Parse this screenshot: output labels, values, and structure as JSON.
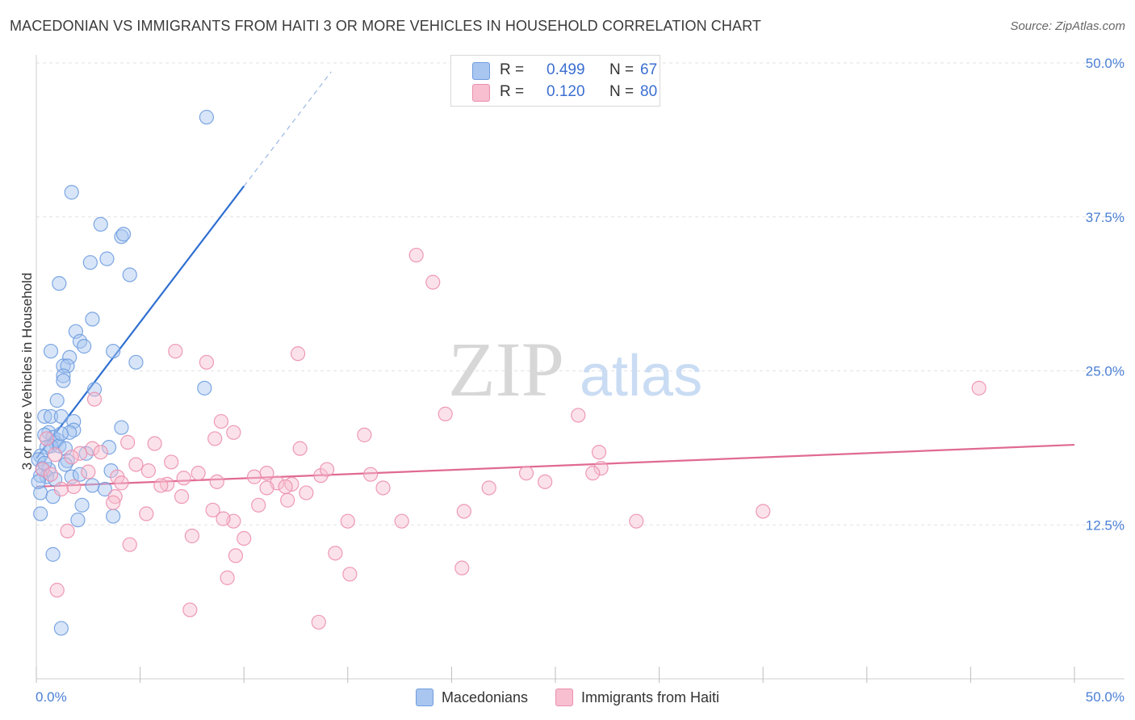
{
  "title": "MACEDONIAN VS IMMIGRANTS FROM HAITI 3 OR MORE VEHICLES IN HOUSEHOLD CORRELATION CHART",
  "source": "Source: ZipAtlas.com",
  "watermark": {
    "zip": "ZIP",
    "atlas": "atlas"
  },
  "stats": [
    {
      "r_label": "R =",
      "r_value": "0.499",
      "n_label": "N =",
      "n_value": "67",
      "color": "#a9c6f0",
      "border": "#6f9de0"
    },
    {
      "r_label": "R =",
      "r_value": "0.120",
      "n_label": "N =",
      "n_value": "80",
      "color": "#f7bfd0",
      "border": "#ec8fae"
    }
  ],
  "legend": [
    {
      "label": "Macedonians",
      "color": "#a9c6f0",
      "border": "#6f9de0"
    },
    {
      "label": "Immigrants from Haiti",
      "color": "#f7bfd0",
      "border": "#ec8fae"
    }
  ],
  "chart_data": {
    "type": "scatter",
    "title": "MACEDONIAN VS IMMIGRANTS FROM HAITI 3 OR MORE VEHICLES IN HOUSEHOLD CORRELATION CHART",
    "xlabel": "",
    "ylabel": "3 or more Vehicles in Household",
    "xlim": [
      0,
      50
    ],
    "ylim": [
      0,
      50
    ],
    "x_tick_labels": [
      "0.0%",
      "50.0%"
    ],
    "y_ticks": [
      12.5,
      25.0,
      37.5,
      50.0
    ],
    "y_tick_labels": [
      "12.5%",
      "25.0%",
      "37.5%",
      "50.0%"
    ],
    "series": [
      {
        "name": "Macedonians",
        "color": "#6f9de0",
        "fill": "#a9c6f0",
        "line_color": "#2f6fd0",
        "trend": {
          "x_start": 0.0,
          "y_start": 17.9,
          "x_end": 10.0,
          "y_end": 40.0,
          "dashed_to_x": 14.2
        },
        "points": [
          [
            8.2,
            45.6
          ],
          [
            1.7,
            39.5
          ],
          [
            3.1,
            36.9
          ],
          [
            4.1,
            35.9
          ],
          [
            4.2,
            36.1
          ],
          [
            2.6,
            33.8
          ],
          [
            3.4,
            34.1
          ],
          [
            1.1,
            32.1
          ],
          [
            4.5,
            32.8
          ],
          [
            2.7,
            29.2
          ],
          [
            1.9,
            28.2
          ],
          [
            2.1,
            27.4
          ],
          [
            0.7,
            26.6
          ],
          [
            1.6,
            26.1
          ],
          [
            2.3,
            27.0
          ],
          [
            3.7,
            26.6
          ],
          [
            1.3,
            25.4
          ],
          [
            1.5,
            25.4
          ],
          [
            1.3,
            24.6
          ],
          [
            1.3,
            24.2
          ],
          [
            4.8,
            25.7
          ],
          [
            8.1,
            23.6
          ],
          [
            2.8,
            23.5
          ],
          [
            1.0,
            22.6
          ],
          [
            0.4,
            21.3
          ],
          [
            0.7,
            21.3
          ],
          [
            1.2,
            21.3
          ],
          [
            1.8,
            20.9
          ],
          [
            4.1,
            20.4
          ],
          [
            0.6,
            20.0
          ],
          [
            0.8,
            19.6
          ],
          [
            1.8,
            20.2
          ],
          [
            1.6,
            20.0
          ],
          [
            0.9,
            19.2
          ],
          [
            1.0,
            19.4
          ],
          [
            0.7,
            18.9
          ],
          [
            1.1,
            18.9
          ],
          [
            0.4,
            19.8
          ],
          [
            0.5,
            18.8
          ],
          [
            1.4,
            18.7
          ],
          [
            3.5,
            18.8
          ],
          [
            0.2,
            18.1
          ],
          [
            0.1,
            17.8
          ],
          [
            1.5,
            17.7
          ],
          [
            0.3,
            17.1
          ],
          [
            0.6,
            17.0
          ],
          [
            1.4,
            17.4
          ],
          [
            3.6,
            16.9
          ],
          [
            0.5,
            16.4
          ],
          [
            0.9,
            16.2
          ],
          [
            1.7,
            16.4
          ],
          [
            2.1,
            16.6
          ],
          [
            0.2,
            16.5
          ],
          [
            2.7,
            15.7
          ],
          [
            3.3,
            15.4
          ],
          [
            0.2,
            15.1
          ],
          [
            0.8,
            14.8
          ],
          [
            2.2,
            14.1
          ],
          [
            0.2,
            13.4
          ],
          [
            3.7,
            13.2
          ],
          [
            2.0,
            12.9
          ],
          [
            0.8,
            10.1
          ],
          [
            1.2,
            4.1
          ],
          [
            0.4,
            17.5
          ],
          [
            1.2,
            19.9
          ],
          [
            2.4,
            18.3
          ],
          [
            0.1,
            16.0
          ]
        ]
      },
      {
        "name": "Immigrants from Haiti",
        "color": "#ec8fae",
        "fill": "#f7bfd0",
        "line_color": "#e06a93",
        "trend": {
          "x_start": 0.0,
          "y_start": 15.6,
          "x_end": 50.0,
          "y_end": 19.0
        },
        "points": [
          [
            18.3,
            34.4
          ],
          [
            19.1,
            32.2
          ],
          [
            45.4,
            23.6
          ],
          [
            6.7,
            26.6
          ],
          [
            8.2,
            25.7
          ],
          [
            12.6,
            26.4
          ],
          [
            2.8,
            22.7
          ],
          [
            19.7,
            21.5
          ],
          [
            26.1,
            21.4
          ],
          [
            8.9,
            20.9
          ],
          [
            9.5,
            20.0
          ],
          [
            15.8,
            19.8
          ],
          [
            8.6,
            19.5
          ],
          [
            4.4,
            19.2
          ],
          [
            5.7,
            19.1
          ],
          [
            2.7,
            18.7
          ],
          [
            12.7,
            18.7
          ],
          [
            27.1,
            18.4
          ],
          [
            3.1,
            18.4
          ],
          [
            2.1,
            18.3
          ],
          [
            0.9,
            18.2
          ],
          [
            1.7,
            18.0
          ],
          [
            6.5,
            17.6
          ],
          [
            4.8,
            17.4
          ],
          [
            27.2,
            17.1
          ],
          [
            0.3,
            17.0
          ],
          [
            5.4,
            16.9
          ],
          [
            7.8,
            16.7
          ],
          [
            11.1,
            16.7
          ],
          [
            16.1,
            16.6
          ],
          [
            23.6,
            16.7
          ],
          [
            26.8,
            16.7
          ],
          [
            0.7,
            16.6
          ],
          [
            13.7,
            16.5
          ],
          [
            3.9,
            16.4
          ],
          [
            7.1,
            16.3
          ],
          [
            10.5,
            16.4
          ],
          [
            8.7,
            16.0
          ],
          [
            4.1,
            15.9
          ],
          [
            6.3,
            15.8
          ],
          [
            6.0,
            15.7
          ],
          [
            12.3,
            15.8
          ],
          [
            11.6,
            15.9
          ],
          [
            12.0,
            15.6
          ],
          [
            11.1,
            15.5
          ],
          [
            16.7,
            15.5
          ],
          [
            21.8,
            15.5
          ],
          [
            1.8,
            15.6
          ],
          [
            1.2,
            15.4
          ],
          [
            13.0,
            15.1
          ],
          [
            3.8,
            14.8
          ],
          [
            7.0,
            14.8
          ],
          [
            3.7,
            14.3
          ],
          [
            12.1,
            14.5
          ],
          [
            10.7,
            14.1
          ],
          [
            8.5,
            13.7
          ],
          [
            20.6,
            13.6
          ],
          [
            35.0,
            13.6
          ],
          [
            5.3,
            13.4
          ],
          [
            15.0,
            12.8
          ],
          [
            17.6,
            12.8
          ],
          [
            28.9,
            12.8
          ],
          [
            9.5,
            12.8
          ],
          [
            1.5,
            12.0
          ],
          [
            7.5,
            11.6
          ],
          [
            10.0,
            11.4
          ],
          [
            4.5,
            10.9
          ],
          [
            14.4,
            10.2
          ],
          [
            9.6,
            10.0
          ],
          [
            20.5,
            9.0
          ],
          [
            15.1,
            8.5
          ],
          [
            9.2,
            8.2
          ],
          [
            1.0,
            7.2
          ],
          [
            7.4,
            5.6
          ],
          [
            13.6,
            4.6
          ],
          [
            0.5,
            19.5
          ],
          [
            2.5,
            16.8
          ],
          [
            9.0,
            13.0
          ],
          [
            14.0,
            17.0
          ],
          [
            24.5,
            16.0
          ]
        ]
      }
    ]
  }
}
